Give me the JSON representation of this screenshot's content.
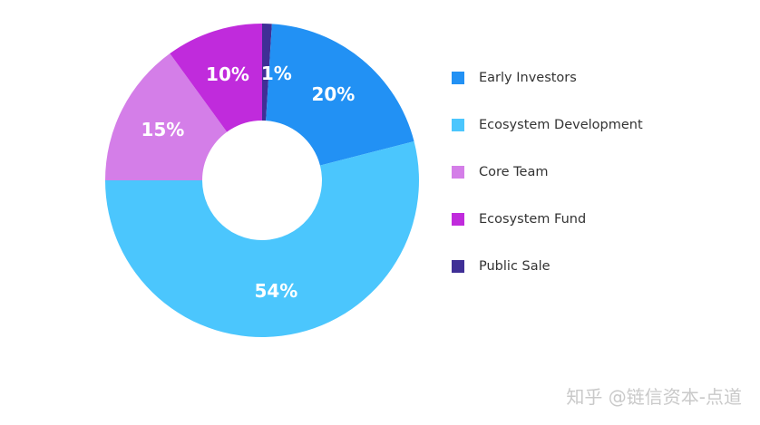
{
  "chart_data": {
    "type": "pie",
    "title": "",
    "slices": [
      {
        "name": "Public Sale",
        "value": 1,
        "label": "1%",
        "color": "#3f2f96"
      },
      {
        "name": "Early Investors",
        "value": 20,
        "label": "20%",
        "color": "#2291f4"
      },
      {
        "name": "Ecosystem Development",
        "value": 54,
        "label": "54%",
        "color": "#4bc6fd"
      },
      {
        "name": "Core Team",
        "value": 15,
        "label": "15%",
        "color": "#d47ee8"
      },
      {
        "name": "Ecosystem Fund",
        "value": 10,
        "label": "10%",
        "color": "#c02bdc"
      }
    ],
    "legend_order": [
      "Early Investors",
      "Ecosystem Development",
      "Core Team",
      "Ecosystem Fund",
      "Public Sale"
    ],
    "legend_position": "right",
    "donut": true
  },
  "watermark": "知乎 @链信资本-点道"
}
